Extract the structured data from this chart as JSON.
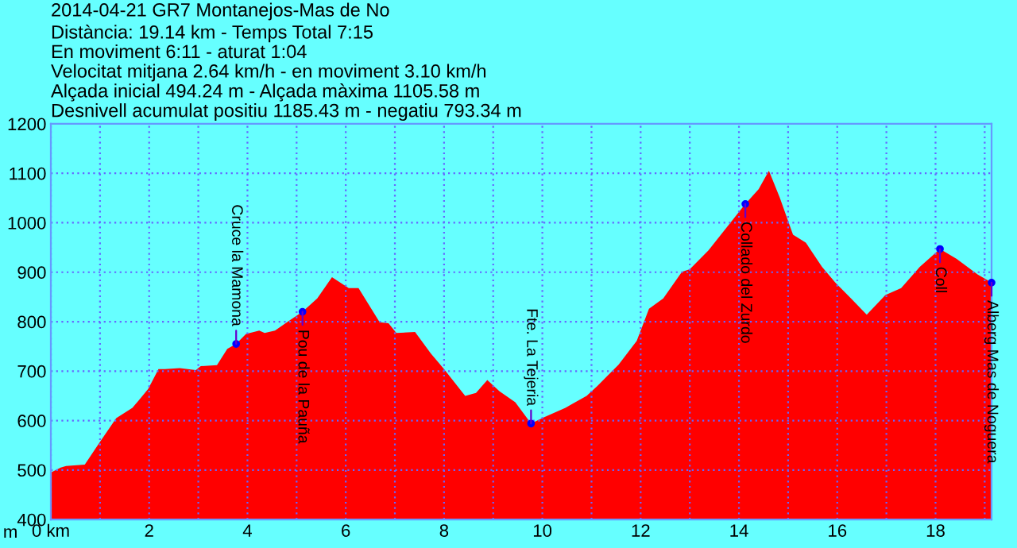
{
  "chart_data": {
    "type": "area",
    "title": "2014-04-21 GR7 Montanejos-Mas de No",
    "subtitle": "Distància: 19.14 km - Temps Total 7:15\nEn moviment 6:11 - aturat 1:04\nVelocitat mitjana 2.64 km/h - en moviment 3.10 km/h\nAlçada inicial 494.24 m - Alçada màxima 1105.58 m\nDesnivell acumulat positiu 1185.43 m - negatiu 793.34 m",
    "ylabel": "m",
    "x": [
      0,
      0.2,
      0.31,
      0.69,
      0.96,
      1.33,
      1.66,
      1.78,
      1.98,
      2.19,
      2.32,
      2.62,
      2.95,
      3.05,
      3.38,
      3.59,
      3.77,
      3.97,
      4.24,
      4.35,
      4.56,
      4.88,
      5.12,
      5.42,
      5.72,
      6.06,
      6.26,
      6.69,
      6.87,
      7.03,
      7.41,
      7.73,
      8.0,
      8.43,
      8.65,
      8.88,
      9.13,
      9.45,
      9.77,
      10.04,
      10.47,
      10.9,
      11.12,
      11.55,
      11.92,
      12.17,
      12.46,
      12.84,
      13.0,
      13.38,
      14.13,
      14.4,
      14.61,
      14.83,
      15.1,
      15.36,
      15.69,
      15.96,
      16.28,
      16.6,
      16.98,
      17.3,
      17.68,
      18.09,
      18.43,
      18.86,
      19.14
    ],
    "series": [
      {
        "color": "#ff0000",
        "values": [
          495,
          505,
          508,
          511,
          551,
          605,
          626,
          640,
          664,
          704,
          704,
          706,
          702,
          710,
          712,
          745,
          755,
          775,
          782,
          777,
          782,
          804,
          820,
          847,
          890,
          868,
          868,
          799,
          797,
          777,
          779,
          736,
          704,
          650,
          656,
          682,
          659,
          637,
          594,
          607,
          626,
          650,
          670,
          713,
          761,
          826,
          847,
          901,
          906,
          944,
          1038,
          1068,
          1105,
          1051,
          976,
          960,
          911,
          879,
          847,
          814,
          854,
          868,
          911,
          947,
          927,
          895,
          879
        ]
      }
    ],
    "xlim": [
      0,
      19.14
    ],
    "ylim": [
      400,
      1200
    ],
    "xticks": [
      {
        "value": 0,
        "label": "0 km"
      },
      {
        "value": 1,
        "label": null
      },
      2,
      {
        "value": 3,
        "label": null
      },
      4,
      {
        "value": 5,
        "label": null
      },
      6,
      {
        "value": 7,
        "label": null
      },
      8,
      {
        "value": 9,
        "label": null
      },
      10,
      {
        "value": 11,
        "label": null
      },
      12,
      {
        "value": 13,
        "label": null
      },
      14,
      {
        "value": 15,
        "label": null
      },
      16,
      {
        "value": 17,
        "label": null
      },
      18,
      {
        "value": 19,
        "label": null
      }
    ],
    "yticks": [
      400,
      500,
      600,
      700,
      800,
      900,
      1000,
      1100,
      1200
    ],
    "grid": true,
    "annotations": [
      {
        "text": "Cruce la Mamona",
        "x": 3.77,
        "y": 755
      },
      {
        "text": "Pou de la Pauña",
        "x": 5.12,
        "y": 820
      },
      {
        "text": "Fte. La Tejeria",
        "x": 9.77,
        "y": 594
      },
      {
        "text": "Collado del Zurdo",
        "x": 14.13,
        "y": 1038
      },
      {
        "text": "Coll",
        "x": 18.09,
        "y": 947
      },
      {
        "text": "Alberg Mas de Noguera",
        "x": 19.14,
        "y": 879
      }
    ]
  }
}
